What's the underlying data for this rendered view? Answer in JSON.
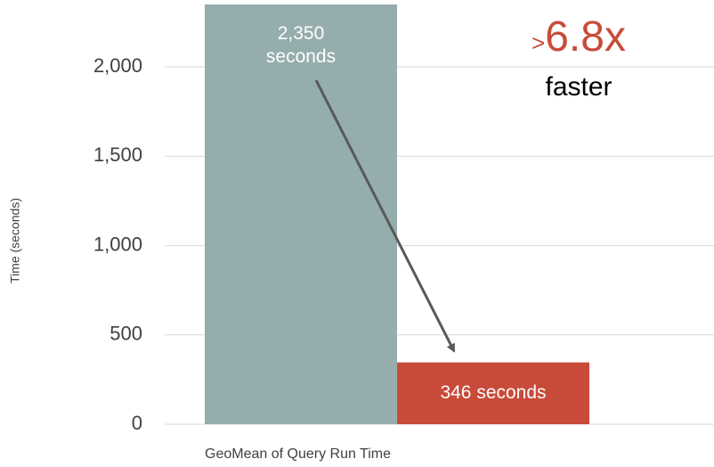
{
  "chart_data": {
    "type": "bar",
    "y_label": "Time (seconds)",
    "categories": [
      "GeoMean of Query Run Time"
    ],
    "series": [
      {
        "color": "#95adad",
        "values": [
          2350
        ],
        "value_labels": [
          "2,350\nseconds"
        ]
      },
      {
        "color": "#c84b3a",
        "values": [
          346
        ],
        "value_labels": [
          "346 seconds"
        ]
      }
    ],
    "ylim": [
      0,
      2350
    ],
    "yticks": [
      0,
      500,
      {
        "value": 1000,
        "label": "1,000"
      },
      {
        "value": 1500,
        "label": "1,500"
      },
      {
        "value": 2000,
        "label": "2,000"
      }
    ],
    "grid": true,
    "annotation": {
      "prefix": ">",
      "text": "6.8x",
      "caption": "faster",
      "color": "#c84b3a"
    }
  }
}
